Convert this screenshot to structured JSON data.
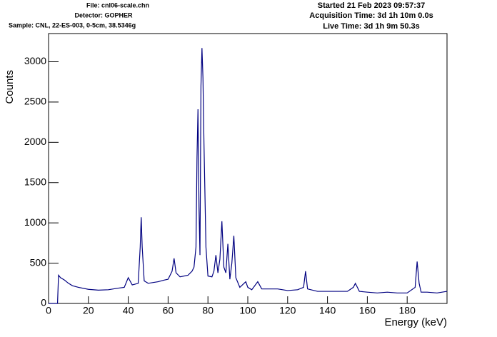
{
  "chart_data": {
    "type": "line",
    "header_left": [
      "File: cnl06-scale.chn",
      "Detector: GOPHER",
      "Sample: CNL, 22-ES-003, 0-5cm, 38.5346g"
    ],
    "header_right": [
      "Started 21 Feb 2023 09:57:37",
      "Acquisition Time: 3d 1h 10m 0.0s",
      "Live Time: 3d 1h 9m 50.3s"
    ],
    "x_label": "Energy (keV)",
    "y_label": "Counts",
    "xlim": [
      0,
      200
    ],
    "ylim": [
      0,
      3350
    ],
    "xticks": [
      0,
      20,
      40,
      60,
      80,
      100,
      120,
      140,
      160,
      180
    ],
    "yticks": [
      0,
      500,
      1000,
      1500,
      2000,
      2500,
      3000
    ],
    "series": [
      {
        "color": "#000080",
        "x": [
          0,
          4.5,
          5,
          6,
          8,
          10,
          12,
          15,
          20,
          25,
          30,
          35,
          38,
          40,
          42,
          45,
          46,
          46.5,
          47,
          48,
          50,
          55,
          58,
          60,
          62,
          63,
          64,
          66,
          70,
          72,
          73,
          74,
          74.5,
          75,
          75.5,
          76,
          76.5,
          77,
          77.5,
          78,
          79,
          80,
          82,
          83,
          84,
          85,
          86,
          87,
          88,
          89,
          90,
          91,
          92,
          93,
          94,
          96,
          99,
          100,
          102,
          105,
          107,
          110,
          115,
          120,
          125,
          128,
          129,
          130,
          135,
          140,
          145,
          150,
          153,
          154,
          156,
          160,
          165,
          170,
          175,
          180,
          184,
          185,
          186,
          187,
          190,
          195,
          200
        ],
        "values": [
          0,
          0,
          350,
          320,
          290,
          250,
          220,
          200,
          175,
          165,
          170,
          190,
          200,
          320,
          230,
          250,
          700,
          1070,
          700,
          280,
          250,
          270,
          290,
          300,
          400,
          560,
          380,
          330,
          350,
          400,
          450,
          700,
          1800,
          2410,
          1200,
          600,
          2700,
          3170,
          2800,
          2000,
          700,
          340,
          330,
          400,
          600,
          380,
          550,
          1020,
          450,
          380,
          740,
          300,
          500,
          840,
          320,
          200,
          270,
          200,
          170,
          270,
          180,
          180,
          180,
          160,
          170,
          200,
          400,
          180,
          150,
          150,
          150,
          150,
          200,
          250,
          150,
          140,
          130,
          140,
          130,
          130,
          200,
          520,
          250,
          140,
          140,
          130,
          150
        ]
      }
    ]
  }
}
